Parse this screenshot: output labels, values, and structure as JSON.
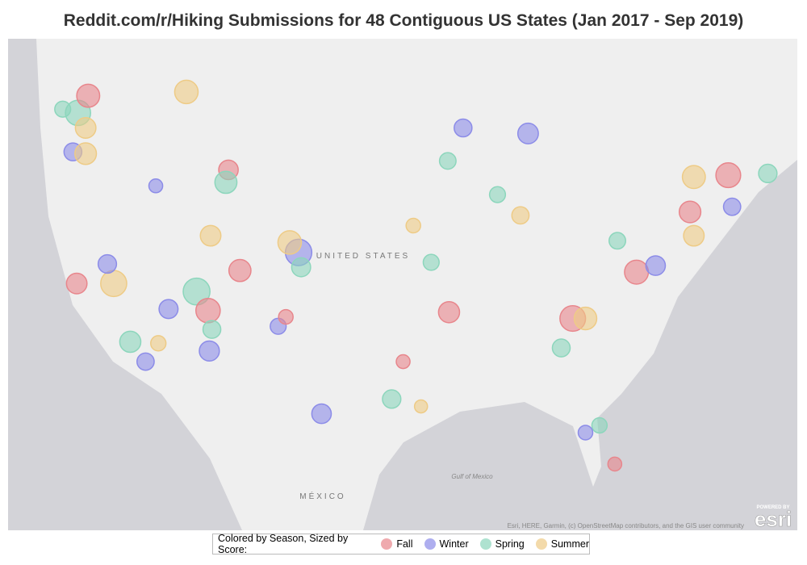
{
  "map": {
    "title": "Reddit.com/r/Hiking Submissions for 48 Contiguous US States (Jan 2017 - Sep 2019)",
    "labels": {
      "country": "UNITED STATES",
      "mexico": "MÉXICO",
      "gulf": "Gulf of Mexico"
    },
    "attribution": "Esri, HERE, Garmin, (c) OpenStreetMap contributors, and the GIS user community",
    "logo": {
      "top": "POWERED BY",
      "name": "esri"
    },
    "legend_title": "Colored by Season, Sized by Score:",
    "seasons": [
      {
        "name": "Fall",
        "color": "#e8868c"
      },
      {
        "name": "Winter",
        "color": "#8c8ce8"
      },
      {
        "name": "Spring",
        "color": "#8cd6bc"
      },
      {
        "name": "Summer",
        "color": "#eecb86"
      }
    ],
    "points": [
      {
        "lon": -122.3,
        "lat": 47.6,
        "season": 2,
        "score": 300
      },
      {
        "lon": -121.7,
        "lat": 46.8,
        "season": 3,
        "score": 200
      },
      {
        "lon": -121.5,
        "lat": 48.5,
        "season": 0,
        "score": 250
      },
      {
        "lon": -122.7,
        "lat": 45.5,
        "season": 1,
        "score": 150
      },
      {
        "lon": -121.7,
        "lat": 45.4,
        "season": 3,
        "score": 220
      },
      {
        "lon": -123.5,
        "lat": 47.8,
        "season": 2,
        "score": 120
      },
      {
        "lon": -113.8,
        "lat": 48.7,
        "season": 3,
        "score": 260
      },
      {
        "lon": -110.5,
        "lat": 44.5,
        "season": 0,
        "score": 180
      },
      {
        "lon": -110.7,
        "lat": 43.8,
        "season": 2,
        "score": 230
      },
      {
        "lon": -116.2,
        "lat": 43.6,
        "season": 1,
        "score": 90
      },
      {
        "lon": -122.4,
        "lat": 37.8,
        "season": 0,
        "score": 200
      },
      {
        "lon": -119.5,
        "lat": 37.8,
        "season": 3,
        "score": 320
      },
      {
        "lon": -120.0,
        "lat": 39.0,
        "season": 1,
        "score": 160
      },
      {
        "lon": -118.2,
        "lat": 34.1,
        "season": 2,
        "score": 210
      },
      {
        "lon": -117.0,
        "lat": 32.8,
        "season": 1,
        "score": 140
      },
      {
        "lon": -116.0,
        "lat": 34.0,
        "season": 3,
        "score": 110
      },
      {
        "lon": -115.2,
        "lat": 36.2,
        "season": 1,
        "score": 170
      },
      {
        "lon": -113.0,
        "lat": 37.3,
        "season": 2,
        "score": 340
      },
      {
        "lon": -112.1,
        "lat": 36.1,
        "season": 0,
        "score": 280
      },
      {
        "lon": -112.0,
        "lat": 33.5,
        "season": 1,
        "score": 190
      },
      {
        "lon": -111.8,
        "lat": 34.9,
        "season": 2,
        "score": 150
      },
      {
        "lon": -111.9,
        "lat": 40.7,
        "season": 3,
        "score": 200
      },
      {
        "lon": -109.6,
        "lat": 38.6,
        "season": 0,
        "score": 230
      },
      {
        "lon": -105.0,
        "lat": 39.7,
        "season": 1,
        "score": 330
      },
      {
        "lon": -105.7,
        "lat": 40.3,
        "season": 3,
        "score": 260
      },
      {
        "lon": -104.8,
        "lat": 38.8,
        "season": 2,
        "score": 170
      },
      {
        "lon": -106.6,
        "lat": 35.1,
        "season": 1,
        "score": 120
      },
      {
        "lon": -106.0,
        "lat": 35.7,
        "season": 0,
        "score": 100
      },
      {
        "lon": -103.2,
        "lat": 29.3,
        "season": 1,
        "score": 180
      },
      {
        "lon": -97.7,
        "lat": 30.3,
        "season": 2,
        "score": 160
      },
      {
        "lon": -96.8,
        "lat": 32.8,
        "season": 0,
        "score": 90
      },
      {
        "lon": -95.4,
        "lat": 29.8,
        "season": 3,
        "score": 80
      },
      {
        "lon": -93.2,
        "lat": 36.0,
        "season": 0,
        "score": 210
      },
      {
        "lon": -93.3,
        "lat": 45.0,
        "season": 2,
        "score": 130
      },
      {
        "lon": -92.1,
        "lat": 46.8,
        "season": 1,
        "score": 150
      },
      {
        "lon": -87.6,
        "lat": 41.9,
        "season": 3,
        "score": 140
      },
      {
        "lon": -89.4,
        "lat": 43.1,
        "season": 2,
        "score": 120
      },
      {
        "lon": -87.0,
        "lat": 46.5,
        "season": 1,
        "score": 200
      },
      {
        "lon": -83.5,
        "lat": 35.6,
        "season": 0,
        "score": 310
      },
      {
        "lon": -82.5,
        "lat": 35.6,
        "season": 3,
        "score": 240
      },
      {
        "lon": -84.4,
        "lat": 33.7,
        "season": 2,
        "score": 150
      },
      {
        "lon": -78.5,
        "lat": 38.5,
        "season": 0,
        "score": 270
      },
      {
        "lon": -77.0,
        "lat": 38.9,
        "season": 1,
        "score": 180
      },
      {
        "lon": -80.0,
        "lat": 40.4,
        "season": 2,
        "score": 130
      },
      {
        "lon": -74.0,
        "lat": 40.7,
        "season": 3,
        "score": 200
      },
      {
        "lon": -74.3,
        "lat": 42.1,
        "season": 0,
        "score": 220
      },
      {
        "lon": -74.0,
        "lat": 44.1,
        "season": 3,
        "score": 250
      },
      {
        "lon": -71.3,
        "lat": 44.2,
        "season": 0,
        "score": 290
      },
      {
        "lon": -68.2,
        "lat": 44.3,
        "season": 2,
        "score": 160
      },
      {
        "lon": -71.0,
        "lat": 42.4,
        "season": 1,
        "score": 140
      },
      {
        "lon": -81.4,
        "lat": 28.5,
        "season": 2,
        "score": 110
      },
      {
        "lon": -80.2,
        "lat": 25.8,
        "season": 0,
        "score": 90
      },
      {
        "lon": -82.5,
        "lat": 28.0,
        "season": 1,
        "score": 100
      },
      {
        "lon": -94.6,
        "lat": 39.1,
        "season": 2,
        "score": 120
      },
      {
        "lon": -96.0,
        "lat": 41.3,
        "season": 3,
        "score": 100
      }
    ]
  }
}
